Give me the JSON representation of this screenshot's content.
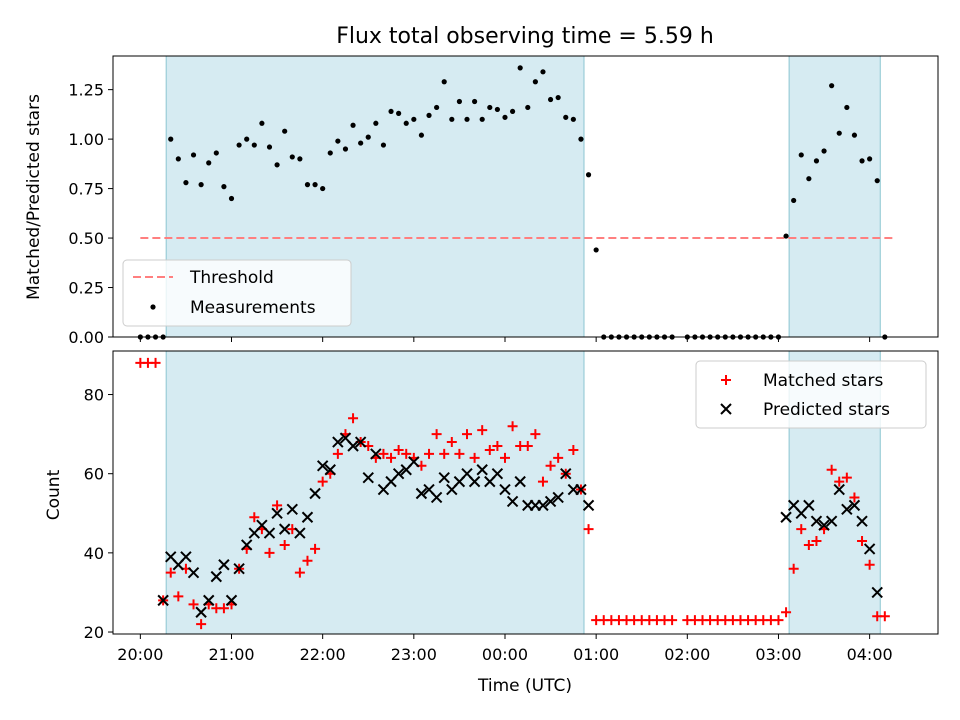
{
  "title": "Flux total observing time = 5.59 h",
  "chart_data": [
    {
      "type": "scatter",
      "panel": "top",
      "ylabel": "Matched/Predicted stars",
      "ylim": [
        0,
        1.42
      ],
      "yticks": [
        0.0,
        0.25,
        0.5,
        0.75,
        1.0,
        1.25
      ],
      "ytick_labels": [
        "0.00",
        "0.25",
        "0.50",
        "0.75",
        "1.00",
        "1.25"
      ],
      "threshold": {
        "value": 0.5,
        "x_start": "20:00",
        "x_end": "04:15",
        "color": "#ff7f7f"
      },
      "shaded_intervals": [
        [
          "20:17",
          "00:52"
        ],
        [
          "03:07",
          "04:07"
        ]
      ],
      "legend": {
        "position": "lower-left",
        "entries": [
          "Threshold",
          "Measurements"
        ]
      },
      "series": [
        {
          "name": "Measurements",
          "marker": "dot",
          "color": "#000000",
          "x": [
            "20:00",
            "20:05",
            "20:10",
            "20:15",
            "20:20",
            "20:25",
            "20:30",
            "20:35",
            "20:40",
            "20:45",
            "20:50",
            "20:55",
            "21:00",
            "21:05",
            "21:10",
            "21:15",
            "21:20",
            "21:25",
            "21:30",
            "21:35",
            "21:40",
            "21:45",
            "21:50",
            "21:55",
            "22:00",
            "22:05",
            "22:10",
            "22:15",
            "22:20",
            "22:25",
            "22:30",
            "22:35",
            "22:40",
            "22:45",
            "22:50",
            "22:55",
            "23:00",
            "23:05",
            "23:10",
            "23:15",
            "23:20",
            "23:25",
            "23:30",
            "23:35",
            "23:40",
            "23:45",
            "23:50",
            "23:55",
            "00:00",
            "00:05",
            "00:10",
            "00:15",
            "00:20",
            "00:25",
            "00:30",
            "00:35",
            "00:40",
            "00:45",
            "00:50",
            "00:55",
            "01:00",
            "01:05",
            "01:10",
            "01:15",
            "01:20",
            "01:25",
            "01:30",
            "01:35",
            "01:40",
            "01:45",
            "01:50",
            "02:00",
            "02:05",
            "02:10",
            "02:15",
            "02:20",
            "02:25",
            "02:30",
            "02:35",
            "02:40",
            "02:45",
            "02:50",
            "02:55",
            "03:00",
            "03:05",
            "03:10",
            "03:15",
            "03:20",
            "03:25",
            "03:30",
            "03:35",
            "03:40",
            "03:45",
            "03:50",
            "03:55",
            "04:00",
            "04:05",
            "04:10"
          ],
          "y": [
            0.0,
            0.0,
            0.0,
            0.0,
            1.0,
            0.9,
            0.78,
            0.92,
            0.77,
            0.88,
            0.93,
            0.76,
            0.7,
            0.97,
            1.0,
            0.97,
            1.08,
            0.96,
            0.87,
            1.04,
            0.91,
            0.9,
            0.77,
            0.77,
            0.75,
            0.93,
            0.99,
            0.95,
            1.07,
            0.98,
            1.01,
            1.08,
            0.97,
            1.14,
            1.13,
            1.08,
            1.1,
            1.02,
            1.12,
            1.16,
            1.29,
            1.1,
            1.19,
            1.1,
            1.19,
            1.1,
            1.16,
            1.15,
            1.11,
            1.14,
            1.36,
            1.16,
            1.29,
            1.34,
            1.2,
            1.21,
            1.11,
            1.1,
            1.0,
            0.82,
            0.44,
            0.0,
            0.0,
            0.0,
            0.0,
            0.0,
            0.0,
            0.0,
            0.0,
            0.0,
            0.0,
            0.0,
            0.0,
            0.0,
            0.0,
            0.0,
            0.0,
            0.0,
            0.0,
            0.0,
            0.0,
            0.0,
            0.0,
            0.0,
            0.51,
            0.69,
            0.92,
            0.8,
            0.89,
            0.94,
            1.27,
            1.03,
            1.16,
            1.02,
            0.89,
            0.9,
            0.79,
            0.0
          ]
        }
      ]
    },
    {
      "type": "scatter",
      "panel": "bottom",
      "xlabel": "Time (UTC)",
      "ylabel": "Count",
      "ylim": [
        19.5,
        91
      ],
      "yticks": [
        20,
        40,
        60,
        80
      ],
      "ytick_labels": [
        "20",
        "40",
        "60",
        "80"
      ],
      "x_ticks": [
        "20:00",
        "21:00",
        "22:00",
        "23:00",
        "00:00",
        "01:00",
        "02:00",
        "03:00",
        "04:00"
      ],
      "x_range": [
        "19:42",
        "04:45"
      ],
      "shaded_intervals": [
        [
          "20:17",
          "00:52"
        ],
        [
          "03:07",
          "04:07"
        ]
      ],
      "legend": {
        "position": "top-right",
        "entries": [
          "Matched stars",
          "Predicted stars"
        ]
      },
      "series": [
        {
          "name": "Matched stars",
          "marker": "+",
          "color": "#ff0000",
          "x": [
            "20:00",
            "20:05",
            "20:10",
            "20:15",
            "20:20",
            "20:25",
            "20:30",
            "20:35",
            "20:40",
            "20:45",
            "20:50",
            "20:55",
            "21:00",
            "21:05",
            "21:10",
            "21:15",
            "21:20",
            "21:25",
            "21:30",
            "21:35",
            "21:40",
            "21:45",
            "21:50",
            "21:55",
            "22:00",
            "22:05",
            "22:10",
            "22:15",
            "22:20",
            "22:25",
            "22:30",
            "22:35",
            "22:40",
            "22:45",
            "22:50",
            "22:55",
            "23:00",
            "23:05",
            "23:10",
            "23:15",
            "23:20",
            "23:25",
            "23:30",
            "23:35",
            "23:40",
            "23:45",
            "23:50",
            "23:55",
            "00:00",
            "00:05",
            "00:10",
            "00:15",
            "00:20",
            "00:25",
            "00:30",
            "00:35",
            "00:40",
            "00:45",
            "00:50",
            "00:55",
            "01:00",
            "01:05",
            "01:10",
            "01:15",
            "01:20",
            "01:25",
            "01:30",
            "01:35",
            "01:40",
            "01:45",
            "01:50",
            "02:00",
            "02:05",
            "02:10",
            "02:15",
            "02:20",
            "02:25",
            "02:30",
            "02:35",
            "02:40",
            "02:45",
            "02:50",
            "02:55",
            "03:00",
            "03:05",
            "03:10",
            "03:15",
            "03:20",
            "03:25",
            "03:30",
            "03:35",
            "03:40",
            "03:45",
            "03:50",
            "03:55",
            "04:00",
            "04:05",
            "04:10"
          ],
          "y": [
            88,
            88,
            88,
            28,
            35,
            29,
            36,
            27,
            22,
            27,
            26,
            26,
            27,
            36,
            41,
            49,
            46,
            40,
            52,
            42,
            46,
            35,
            38,
            41,
            58,
            60,
            65,
            70,
            74,
            68,
            67,
            64,
            65,
            64,
            66,
            65,
            64,
            62,
            65,
            70,
            65,
            68,
            65,
            70,
            64,
            71,
            66,
            67,
            64,
            72,
            67,
            67,
            70,
            58,
            62,
            64,
            60,
            66,
            56,
            46,
            23,
            23,
            23,
            23,
            23,
            23,
            23,
            23,
            23,
            23,
            23,
            23,
            23,
            23,
            23,
            23,
            23,
            23,
            23,
            23,
            23,
            23,
            23,
            23,
            25,
            36,
            46,
            42,
            43,
            46,
            61,
            58,
            59,
            54,
            43,
            37,
            24,
            24
          ]
        },
        {
          "name": "Predicted stars",
          "marker": "x",
          "color": "#000000",
          "x": [
            "20:15",
            "20:20",
            "20:25",
            "20:30",
            "20:35",
            "20:40",
            "20:45",
            "20:50",
            "20:55",
            "21:00",
            "21:05",
            "21:10",
            "21:15",
            "21:20",
            "21:25",
            "21:30",
            "21:35",
            "21:40",
            "21:45",
            "21:50",
            "21:55",
            "22:00",
            "22:05",
            "22:10",
            "22:15",
            "22:20",
            "22:25",
            "22:30",
            "22:35",
            "22:40",
            "22:45",
            "22:50",
            "22:55",
            "23:00",
            "23:05",
            "23:10",
            "23:15",
            "23:20",
            "23:25",
            "23:30",
            "23:35",
            "23:40",
            "23:45",
            "23:50",
            "23:55",
            "00:00",
            "00:05",
            "00:10",
            "00:15",
            "00:20",
            "00:25",
            "00:30",
            "00:35",
            "00:40",
            "00:45",
            "00:50",
            "00:55",
            "03:05",
            "03:10",
            "03:15",
            "03:20",
            "03:25",
            "03:30",
            "03:35",
            "03:40",
            "03:45",
            "03:50",
            "03:55",
            "04:00",
            "04:05"
          ],
          "y": [
            28,
            39,
            37,
            39,
            35,
            25,
            28,
            34,
            37,
            28,
            36,
            42,
            45,
            47,
            45,
            50,
            46,
            51,
            45,
            49,
            55,
            62,
            61,
            68,
            69,
            67,
            68,
            59,
            65,
            56,
            58,
            60,
            61,
            63,
            55,
            56,
            54,
            59,
            56,
            58,
            60,
            58,
            61,
            58,
            60,
            56,
            53,
            58,
            52,
            52,
            52,
            53,
            54,
            60,
            56,
            56,
            52,
            49,
            52,
            50,
            52,
            48,
            47,
            48,
            56,
            51,
            52,
            48,
            41,
            30
          ]
        }
      ]
    }
  ]
}
